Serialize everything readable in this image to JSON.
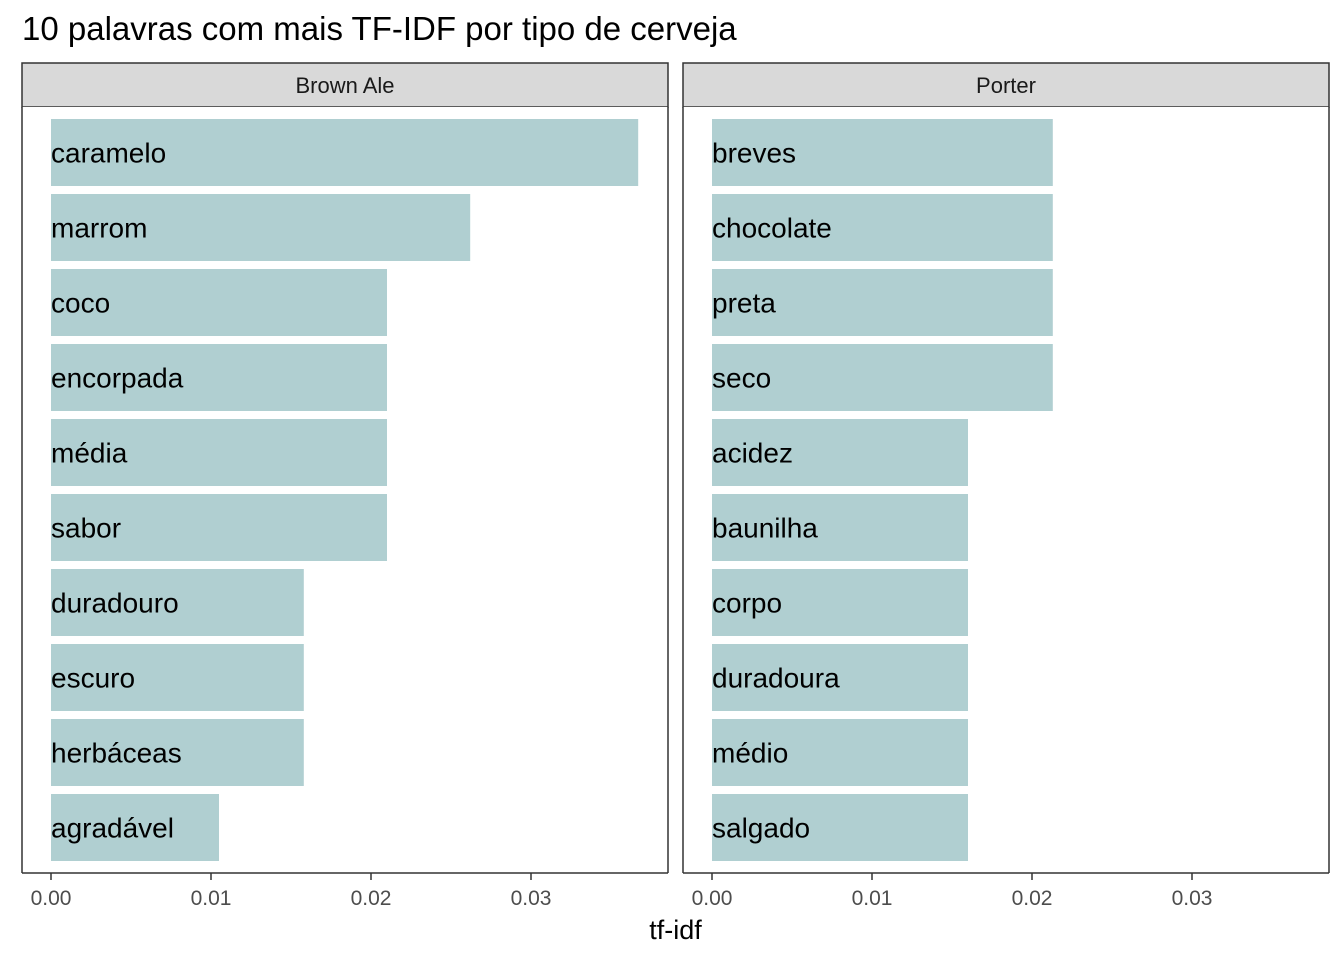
{
  "chart_data": {
    "type": "bar",
    "orientation": "horizontal",
    "title": "10 palavras com mais TF-IDF por tipo de cerveja",
    "xlabel": "tf-idf",
    "ylabel": "",
    "xlim": [
      0,
      0.038
    ],
    "x_ticks": [
      "0.00",
      "0.01",
      "0.02",
      "0.03"
    ],
    "x_tick_values": [
      0,
      0.01,
      0.02,
      0.03
    ],
    "bar_color": "#b0cfd1",
    "grid": false,
    "panels": [
      {
        "name": "Brown Ale",
        "categories": [
          "caramelo",
          "marrom",
          "coco",
          "encorpada",
          "média",
          "sabor",
          "duradouro",
          "escuro",
          "herbáceas",
          "agradável"
        ],
        "values": [
          0.0367,
          0.0262,
          0.021,
          0.021,
          0.021,
          0.021,
          0.0158,
          0.0158,
          0.0158,
          0.0105
        ]
      },
      {
        "name": "Porter",
        "categories": [
          "breves",
          "chocolate",
          "preta",
          "seco",
          "acidez",
          "baunilha",
          "corpo",
          "duradoura",
          "médio",
          "salgado"
        ],
        "values": [
          0.0213,
          0.0213,
          0.0213,
          0.0213,
          0.016,
          0.016,
          0.016,
          0.016,
          0.016,
          0.016
        ]
      }
    ]
  }
}
